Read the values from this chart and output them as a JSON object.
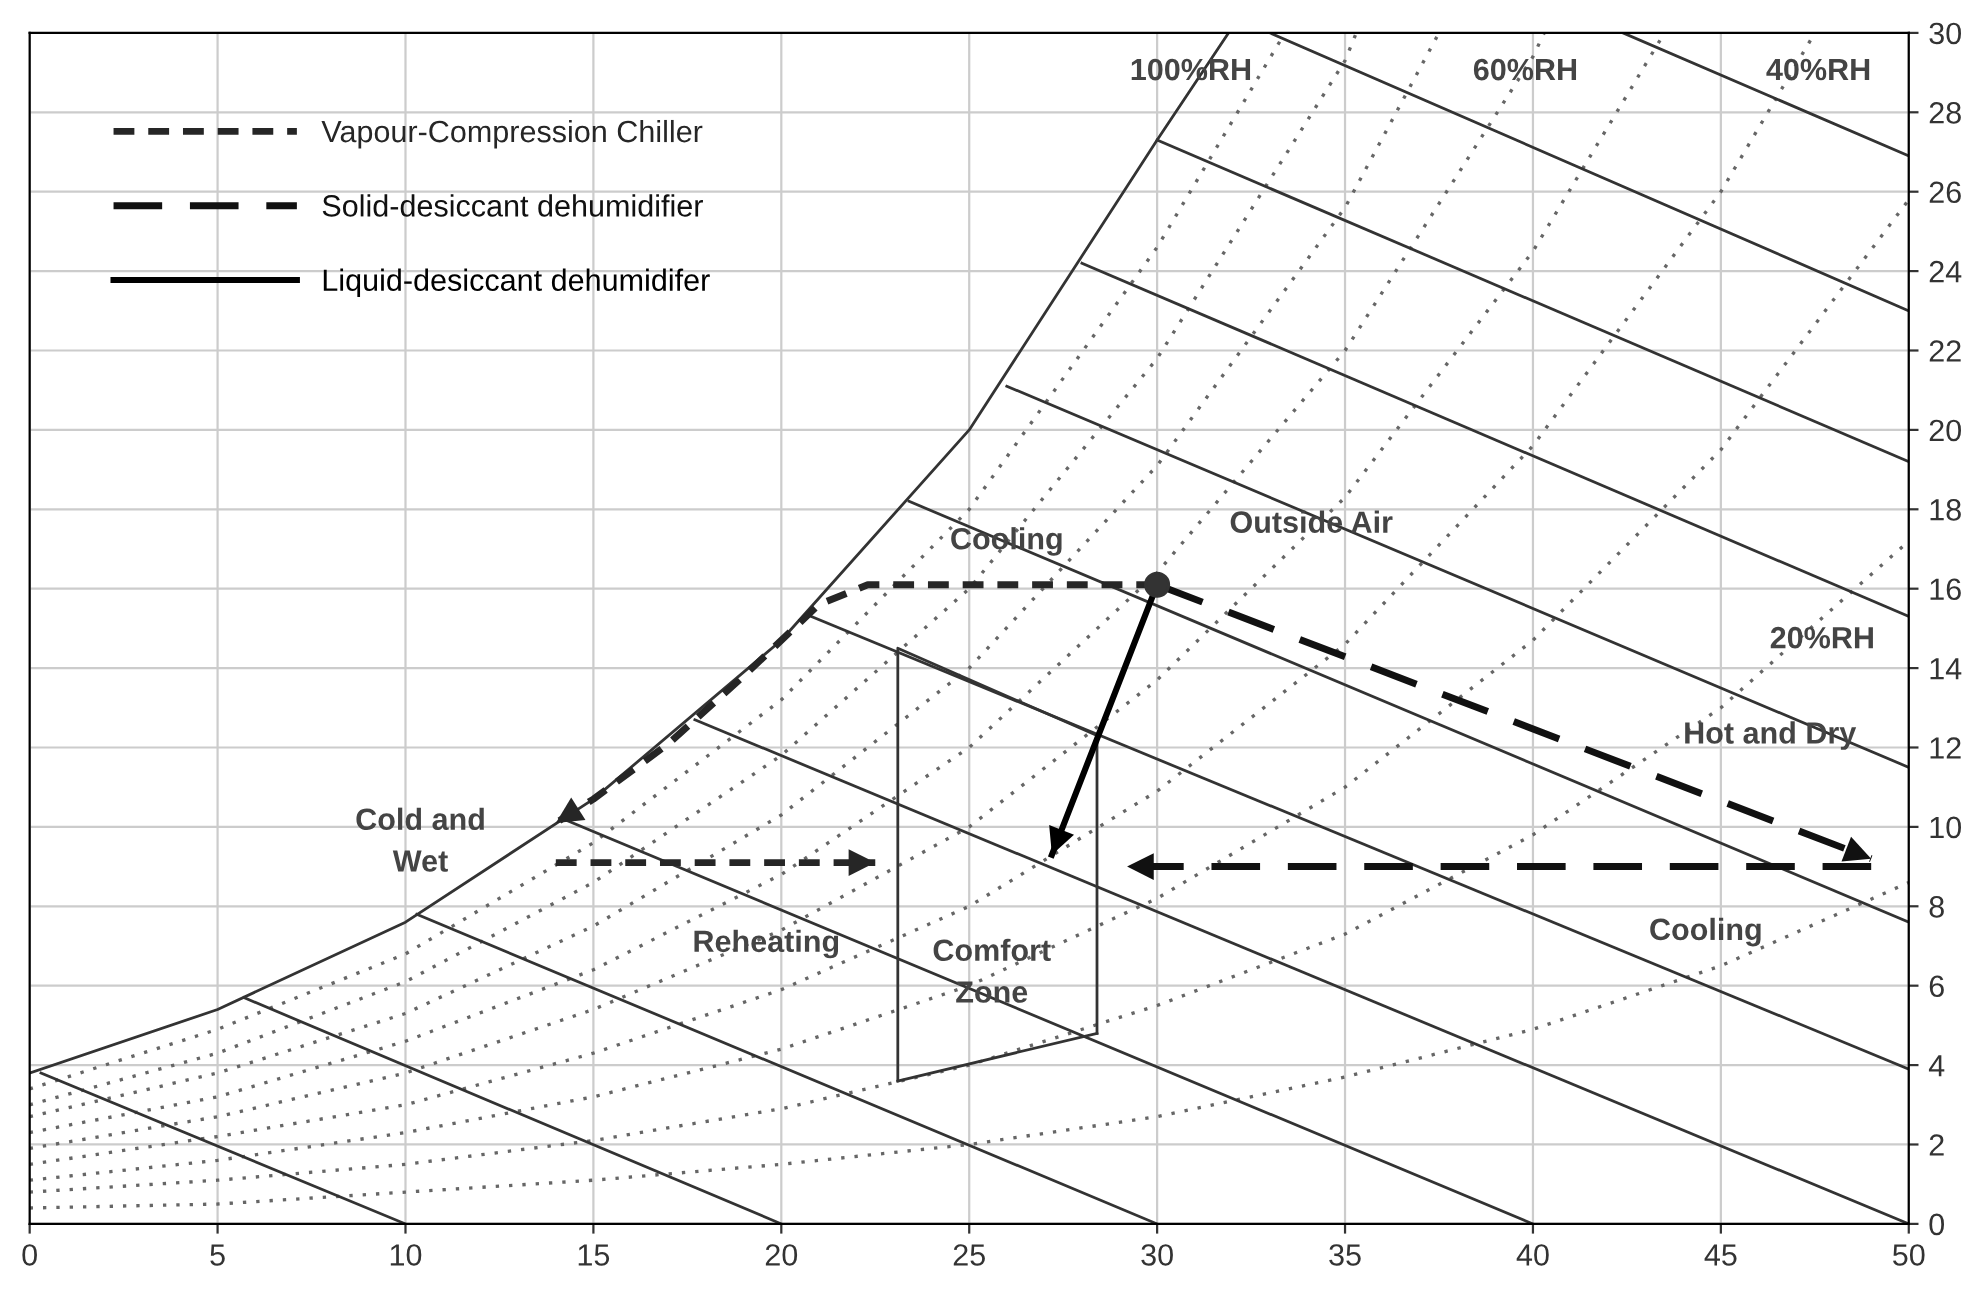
{
  "chart_data": {
    "type": "line",
    "xlim": [
      0,
      50
    ],
    "ylim": [
      0,
      30
    ],
    "xticks": [
      0,
      5,
      10,
      15,
      20,
      25,
      30,
      35,
      40,
      45,
      50
    ],
    "yticks": [
      0,
      2,
      4,
      6,
      8,
      10,
      12,
      14,
      16,
      18,
      20,
      22,
      24,
      26,
      28,
      30
    ],
    "grid": true,
    "legend": "top left",
    "series": [
      {
        "color": "#333333",
        "line_style": "solid",
        "x": [
          0,
          5,
          10,
          15,
          20,
          25,
          30,
          31.9
        ],
        "values": [
          3.8,
          5.4,
          7.6,
          10.7,
          14.7,
          20.0,
          27.3,
          30
        ]
      },
      {
        "color": "#666666",
        "line_style": "dotted",
        "x": [
          0,
          5,
          10,
          15,
          20,
          25,
          30,
          33.4
        ],
        "values": [
          3.4,
          4.9,
          6.8,
          9.6,
          13.2,
          18,
          24.6,
          30
        ]
      },
      {
        "color": "#666666",
        "line_style": "dotted",
        "x": [
          0,
          5,
          10,
          15,
          20,
          25,
          30,
          35,
          35.3
        ],
        "values": [
          3.0,
          4.3,
          6.1,
          8.6,
          11.8,
          16,
          21.8,
          29.3,
          30
        ]
      },
      {
        "color": "#666666",
        "line_style": "dotted",
        "x": [
          0,
          5,
          10,
          15,
          20,
          25,
          30,
          35,
          37.5
        ],
        "values": [
          2.7,
          3.8,
          5.3,
          7.5,
          10.3,
          14,
          19.1,
          25.6,
          30
        ]
      },
      {
        "color": "#666666",
        "line_style": "dotted",
        "x": [
          0,
          5,
          10,
          15,
          20,
          25,
          30,
          35,
          40,
          40.3
        ],
        "values": [
          2.3,
          3.2,
          4.6,
          6.4,
          8.8,
          12,
          16.4,
          22,
          29.4,
          30
        ]
      },
      {
        "color": "#666666",
        "line_style": "dotted",
        "x": [
          0,
          5,
          10,
          15,
          20,
          25,
          30,
          35,
          40,
          43.5
        ],
        "values": [
          1.9,
          2.7,
          3.8,
          5.4,
          7.4,
          10,
          13.7,
          18.3,
          24.5,
          30
        ]
      },
      {
        "color": "#666666",
        "line_style": "dotted",
        "x": [
          0,
          5,
          10,
          15,
          20,
          25,
          30,
          35,
          40,
          45,
          47.5
        ],
        "values": [
          1.5,
          2.2,
          3.0,
          4.3,
          5.9,
          8,
          10.9,
          14.6,
          19.6,
          26,
          30
        ]
      },
      {
        "color": "#666666",
        "line_style": "dotted",
        "x": [
          0,
          5,
          10,
          15,
          20,
          25,
          30,
          35,
          40,
          45,
          50
        ],
        "values": [
          1.1,
          1.6,
          2.3,
          3.2,
          4.4,
          6,
          8.2,
          11,
          14.7,
          19.5,
          25.8
        ]
      },
      {
        "color": "#666666",
        "line_style": "dotted",
        "x": [
          0,
          5,
          10,
          15,
          20,
          25,
          30,
          35,
          40,
          45,
          50
        ],
        "values": [
          0.8,
          1.1,
          1.5,
          2.1,
          2.9,
          4,
          5.5,
          7.3,
          9.8,
          13,
          17.2
        ]
      },
      {
        "color": "#666666",
        "line_style": "dotted",
        "x": [
          0,
          5,
          10,
          15,
          20,
          25,
          30,
          35,
          40,
          45,
          50
        ],
        "values": [
          0.4,
          0.5,
          0.8,
          1.1,
          1.5,
          2,
          2.7,
          3.7,
          4.9,
          6.5,
          8.6
        ]
      },
      {
        "color": "#333333",
        "line_style": "solid",
        "x": [
          0.3,
          10
        ],
        "values": [
          3.8,
          0
        ]
      },
      {
        "color": "#333333",
        "line_style": "solid",
        "x": [
          5.7,
          20
        ],
        "values": [
          5.7,
          0
        ]
      },
      {
        "color": "#333333",
        "line_style": "solid",
        "x": [
          10.3,
          30
        ],
        "values": [
          7.8,
          0
        ]
      },
      {
        "color": "#333333",
        "line_style": "solid",
        "x": [
          14.2,
          40
        ],
        "values": [
          10.2,
          0
        ]
      },
      {
        "color": "#333333",
        "line_style": "solid",
        "x": [
          17.7,
          50
        ],
        "values": [
          12.7,
          0
        ]
      },
      {
        "color": "#333333",
        "line_style": "solid",
        "x": [
          20.8,
          50
        ],
        "values": [
          15.3,
          3.9
        ]
      },
      {
        "color": "#333333",
        "line_style": "solid",
        "x": [
          23.4,
          50
        ],
        "values": [
          18.2,
          7.6
        ]
      },
      {
        "color": "#333333",
        "line_style": "solid",
        "x": [
          26,
          50
        ],
        "values": [
          21.1,
          11.5
        ]
      },
      {
        "color": "#333333",
        "line_style": "solid",
        "x": [
          28,
          50
        ],
        "values": [
          24.2,
          15.3
        ]
      },
      {
        "color": "#333333",
        "line_style": "solid",
        "x": [
          30,
          50
        ],
        "values": [
          27.3,
          19.2
        ]
      },
      {
        "color": "#333333",
        "line_style": "solid",
        "x": [
          33,
          50
        ],
        "values": [
          30,
          23
        ]
      },
      {
        "color": "#333333",
        "line_style": "solid",
        "x": [
          42.4,
          50
        ],
        "values": [
          30,
          26.9
        ]
      },
      {
        "color": "#333333",
        "line_style": "solid",
        "x": [
          23.1,
          23.1,
          28.4,
          28.4
        ],
        "values": [
          3.6,
          14.5,
          12.3,
          4.8
        ]
      },
      {
        "color": "#333333",
        "line_style": "solid",
        "x": [
          28.4,
          23.1
        ],
        "values": [
          4.8,
          3.6
        ]
      },
      {
        "name": "Vapour-Compression Chiller",
        "color": "#262626",
        "line_style": "dashed",
        "x": [
          30,
          22.3,
          21,
          19,
          17,
          15,
          14
        ],
        "values": [
          16.1,
          16.1,
          15.6,
          13.8,
          12.1,
          10.7,
          10.1
        ]
      },
      {
        "color": "#262626",
        "line_style": "dashed",
        "x": [
          14,
          22.5
        ],
        "values": [
          9.1,
          9.1
        ]
      },
      {
        "name": "Solid-desiccant dehumidifier",
        "color": "#111111",
        "line_style": "longdash",
        "x": [
          30,
          49
        ],
        "values": [
          16.1,
          9.2
        ]
      },
      {
        "color": "#111111",
        "line_style": "longdash",
        "x": [
          49,
          29.2
        ],
        "values": [
          9.0,
          9.0
        ]
      },
      {
        "name": "Liquid-desiccant dehumidifer",
        "color": "#000000",
        "line_style": "solid",
        "x": [
          30,
          27.2
        ],
        "values": [
          16.1,
          9.3
        ]
      },
      {
        "type": "scatter",
        "marker": "circle",
        "color": "#333333",
        "x": [
          30
        ],
        "values": [
          16.1
        ]
      }
    ],
    "annotations": [
      "100%RH",
      "60%RH",
      "40%RH",
      "20%RH",
      "Cooling",
      "Outside Air",
      "Hot and Dry",
      "Cold and\nWet",
      "Reheating",
      "Comfort\nZone",
      "Cooling"
    ]
  }
}
